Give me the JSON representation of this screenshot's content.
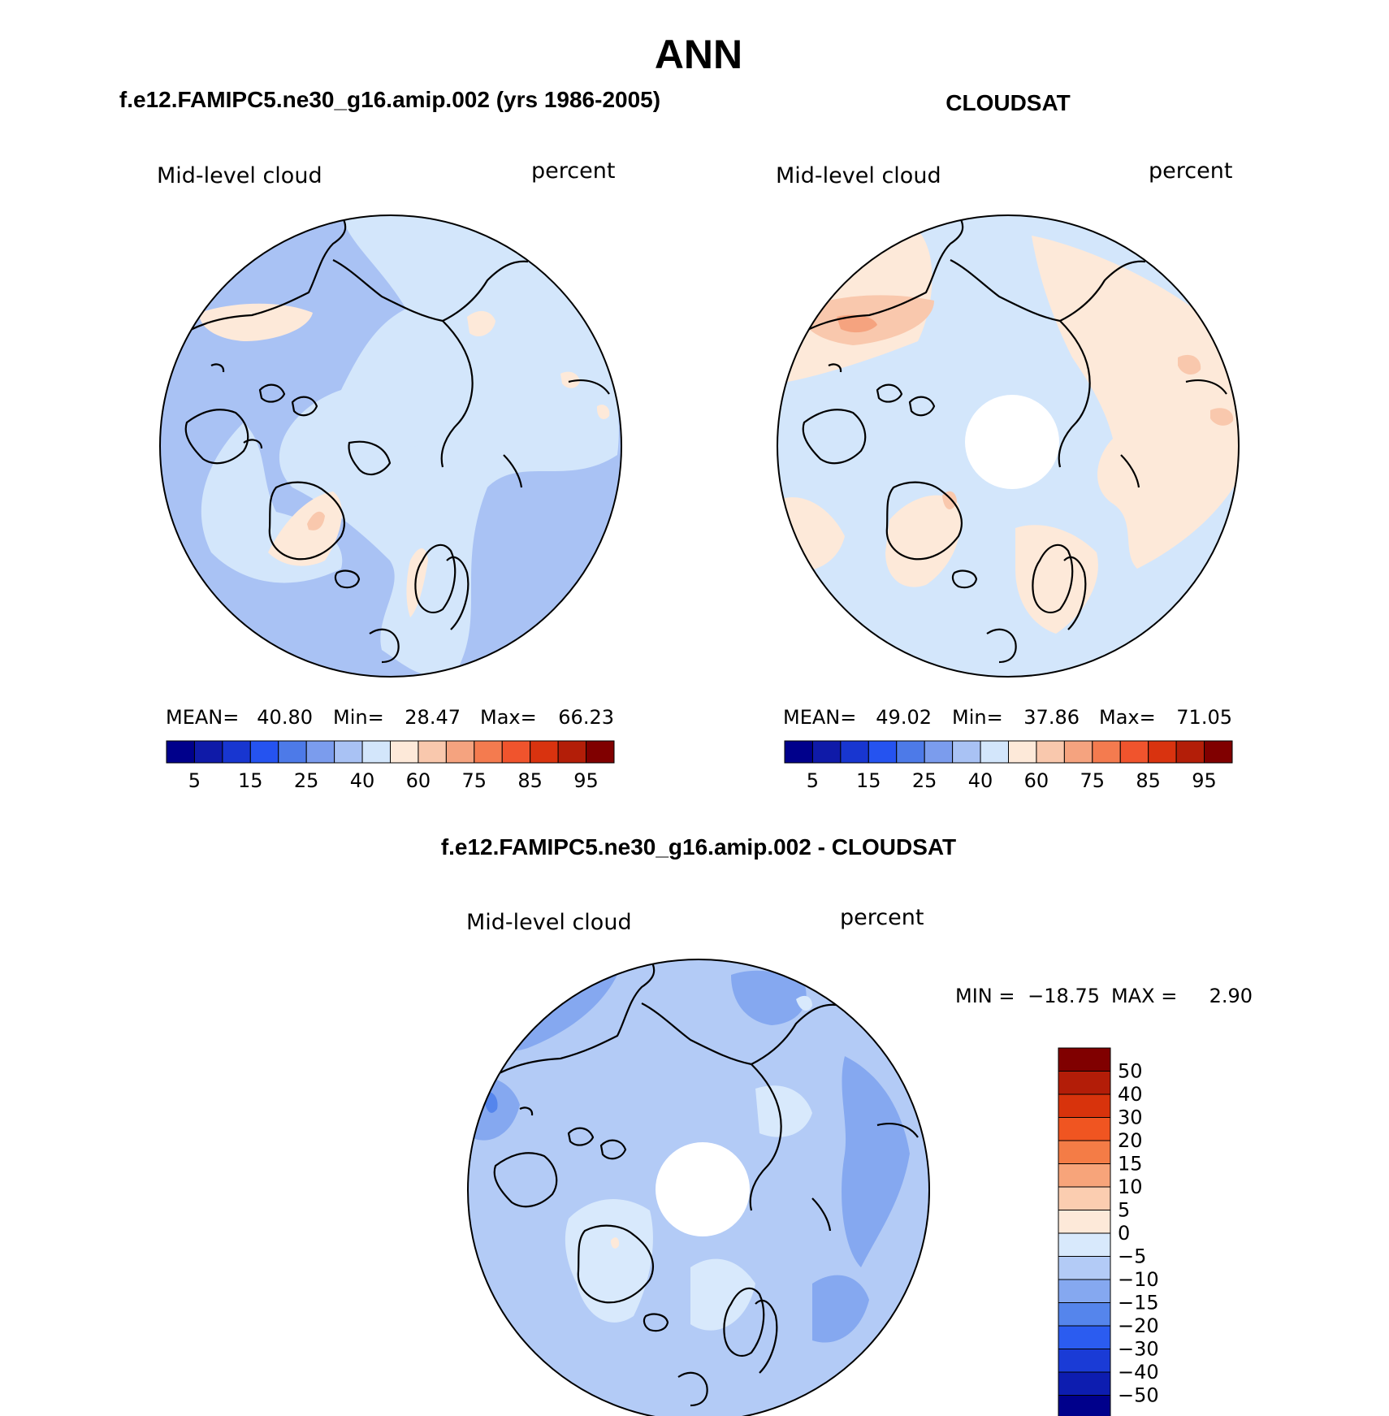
{
  "figure_title": "ANN",
  "palettes": {
    "abs": [
      "#00008b",
      "#0f1aa8",
      "#1836d0",
      "#2553f0",
      "#4d7ae8",
      "#7b9ced",
      "#a9c2f4",
      "#d3e6fb",
      "#fde9d9",
      "#f9c8ad",
      "#f5a37f",
      "#f47b4f",
      "#f0542d",
      "#d9330f",
      "#b31e08",
      "#800000"
    ],
    "diff": [
      "#00008b",
      "#0d1db0",
      "#1a3bd6",
      "#2b5cf0",
      "#5585ec",
      "#85a8f0",
      "#b3cbf6",
      "#d8e9fc",
      "#fde9d9",
      "#fbcdb0",
      "#f7a47a",
      "#f47c46",
      "#f05521",
      "#d8330c",
      "#b31d08",
      "#800000"
    ]
  },
  "panels": [
    {
      "id": "model",
      "case_title": "f.e12.FAMIPC5.ne30_g16.amip.002 (yrs 1986-2005)",
      "variable": "Mid-level cloud",
      "units": "percent",
      "stats": {
        "mean_label": "MEAN=",
        "mean": "40.80",
        "min_label": "Min=",
        "min": "28.47",
        "max_label": "Max=",
        "max": "66.23"
      },
      "colorbar_ticks": [
        "5",
        "15",
        "25",
        "40",
        "60",
        "75",
        "85",
        "95"
      ]
    },
    {
      "id": "obs",
      "case_title": "CLOUDSAT",
      "variable": "Mid-level cloud",
      "units": "percent",
      "stats": {
        "mean_label": "MEAN=",
        "mean": "49.02",
        "min_label": "Min=",
        "min": "37.86",
        "max_label": "Max=",
        "max": "71.05"
      },
      "colorbar_ticks": [
        "5",
        "15",
        "25",
        "40",
        "60",
        "75",
        "85",
        "95"
      ]
    },
    {
      "id": "diff",
      "case_title": "f.e12.FAMIPC5.ne30_g16.amip.002 - CLOUDSAT",
      "variable": "Mid-level cloud",
      "units": "percent",
      "stats": {
        "min_label": "MIN =",
        "min": "-18.75",
        "max_label": "MAX =",
        "max": "2.90"
      },
      "colorbar_ticks": [
        "50",
        "40",
        "30",
        "20",
        "15",
        "10",
        "5",
        "0",
        "-5",
        "-10",
        "-15",
        "-20",
        "-30",
        "-40",
        "-50"
      ]
    }
  ]
}
